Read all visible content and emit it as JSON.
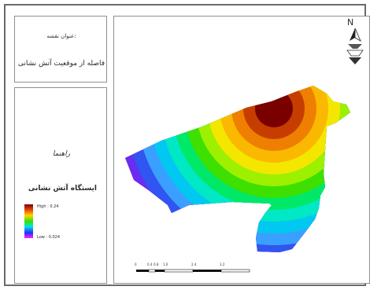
{
  "title_panel": {
    "heading": "عنوان نقشه:",
    "text": "فاصله از موقعیت آتش نشانی"
  },
  "legend": {
    "heading": "راهنما",
    "layer_name": "ایستگاه آتش نشانی",
    "high_label": "High : 0.24",
    "low_label": "Low : 0.024",
    "colors": [
      "#7a0000",
      "#c63d00",
      "#ee7f00",
      "#fbb800",
      "#f5e600",
      "#9df000",
      "#3ee000",
      "#00e868",
      "#00e8c4",
      "#00c8f0",
      "#3aa0ff",
      "#3055f0",
      "#6a2cf0",
      "#c030f0",
      "#f046ee"
    ]
  },
  "map": {
    "north_label": "N",
    "north_arrow_icon": "north-arrow-icon",
    "scale_ticks": [
      "0",
      "0.4",
      "0.8",
      "1.6",
      "2.4",
      "3.2"
    ]
  }
}
